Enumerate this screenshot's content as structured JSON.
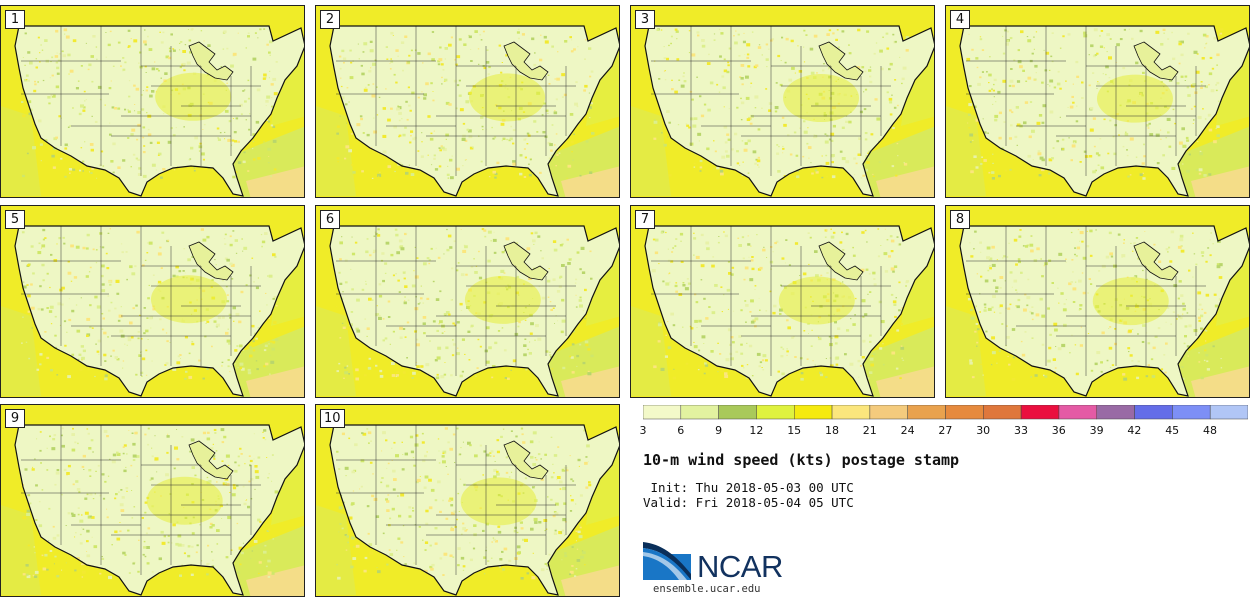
{
  "panels": [
    {
      "label": "1"
    },
    {
      "label": "2"
    },
    {
      "label": "3"
    },
    {
      "label": "4"
    },
    {
      "label": "5"
    },
    {
      "label": "6"
    },
    {
      "label": "7"
    },
    {
      "label": "8"
    },
    {
      "label": "9"
    },
    {
      "label": "10"
    }
  ],
  "colorbar": {
    "ticks": [
      "3",
      "6",
      "9",
      "12",
      "15",
      "18",
      "21",
      "24",
      "27",
      "30",
      "33",
      "36",
      "39",
      "42",
      "45",
      "48"
    ],
    "colors": [
      "#f3f9c9",
      "#e2f2a0",
      "#a9c95a",
      "#dff23f",
      "#f5ea0f",
      "#fbe67d",
      "#f4cb7d",
      "#e9a24e",
      "#e68a3e",
      "#df773c",
      "#ea0f3f",
      "#e45aa5",
      "#996aa5",
      "#646de8",
      "#7d8ff6",
      "#b1c6f6"
    ]
  },
  "title": "10-m wind speed (kts) postage stamp",
  "init": " Init: Thu 2018-05-03 00 UTC",
  "valid": "Valid: Fri 2018-05-04 05 UTC",
  "logo": {
    "name": "NCAR",
    "url": "ensemble.ucar.edu"
  }
}
